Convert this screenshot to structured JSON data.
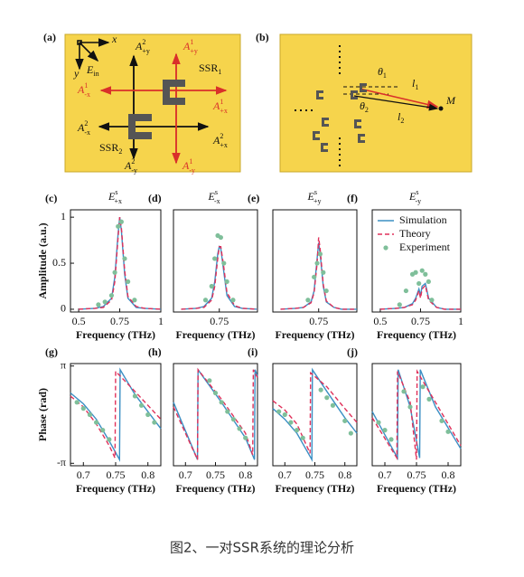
{
  "figure": {
    "a": {
      "label": "(a)",
      "texts": [
        {
          "text": "x"
        },
        {
          "text": "y"
        },
        {
          "text": "E",
          "sub": "in"
        },
        {
          "text": "A",
          "sup": "2",
          "sub": "+y"
        },
        {
          "text": "A",
          "sup": "1",
          "sub": "+y"
        },
        {
          "text": "SSR",
          "sub": "1"
        },
        {
          "text": "A",
          "sup": "1",
          "sub": "-x"
        },
        {
          "text": "A",
          "sup": "1",
          "sub": "+x"
        },
        {
          "text": "A",
          "sup": "2",
          "sub": "-x"
        },
        {
          "text": "A",
          "sup": "2",
          "sub": "+x"
        },
        {
          "text": "SSR",
          "sub": "2"
        },
        {
          "text": "A",
          "sup": "2",
          "sub": "-y"
        },
        {
          "text": "A",
          "sup": "1",
          "sub": "-y"
        }
      ]
    },
    "b": {
      "label": "(b)",
      "texts": [
        {
          "text": "θ",
          "sub": "1"
        },
        {
          "text": "l",
          "sub": "1"
        },
        {
          "text": "θ",
          "sub": "2"
        },
        {
          "text": "l",
          "sub": "2"
        },
        {
          "text": "M"
        }
      ]
    },
    "caption": "图2、一对SSR系统的理论分析"
  },
  "chart_data": [
    {
      "type": "line",
      "label": "(c)",
      "title": {
        "text": "E",
        "sup": "s",
        "sub": "+x"
      },
      "xlabel": "Frequency (THz)",
      "ylabel": "Amplitude (a.u.)",
      "xlim": [
        0.45,
        1.0
      ],
      "ylim": [
        -0.03,
        1.08
      ],
      "xticks": [
        0.5,
        0.75,
        1
      ],
      "yticks": [
        0,
        0.5,
        1
      ],
      "series": [
        {
          "color": "#3b8fc4",
          "style": "solid",
          "x": [
            0.5,
            0.6,
            0.65,
            0.7,
            0.72,
            0.74,
            0.75,
            0.76,
            0.78,
            0.8,
            0.85,
            0.9,
            1
          ],
          "values": [
            0,
            0.01,
            0.03,
            0.12,
            0.35,
            0.82,
            1,
            0.85,
            0.38,
            0.12,
            0.02,
            0.01,
            0
          ]
        },
        {
          "color": "#e0305a",
          "style": "dashed",
          "x": [
            0.5,
            0.6,
            0.65,
            0.7,
            0.72,
            0.74,
            0.75,
            0.76,
            0.78,
            0.8,
            0.85,
            0.9,
            1
          ],
          "values": [
            0,
            0.01,
            0.02,
            0.1,
            0.3,
            0.78,
            1,
            0.88,
            0.42,
            0.14,
            0.03,
            0.01,
            0
          ]
        },
        {
          "color": "#7fbf9a",
          "style": "dots",
          "x": [
            0.62,
            0.66,
            0.7,
            0.72,
            0.74,
            0.76,
            0.78,
            0.8,
            0.84
          ],
          "values": [
            0.05,
            0.08,
            0.15,
            0.4,
            0.9,
            0.95,
            0.55,
            0.3,
            0.1
          ]
        }
      ]
    },
    {
      "type": "line",
      "label": "(d)",
      "title": {
        "text": "E",
        "sup": "s",
        "sub": "-x"
      },
      "xlabel": "Frequency (THz)",
      "xlim": [
        0.45,
        1.0
      ],
      "ylim": [
        -0.03,
        1.08
      ],
      "xticks": [
        0.75
      ],
      "series": [
        {
          "color": "#3b8fc4",
          "style": "solid",
          "x": [
            0.5,
            0.6,
            0.65,
            0.7,
            0.72,
            0.74,
            0.75,
            0.76,
            0.78,
            0.8,
            0.85,
            0.9,
            1
          ],
          "values": [
            0,
            0.01,
            0.03,
            0.12,
            0.3,
            0.6,
            0.68,
            0.66,
            0.4,
            0.15,
            0.03,
            0.01,
            0
          ]
        },
        {
          "color": "#e0305a",
          "style": "dashed",
          "x": [
            0.5,
            0.6,
            0.65,
            0.7,
            0.72,
            0.74,
            0.75,
            0.76,
            0.78,
            0.8,
            0.85,
            0.9,
            1
          ],
          "values": [
            0,
            0.01,
            0.02,
            0.1,
            0.25,
            0.55,
            0.68,
            0.68,
            0.45,
            0.18,
            0.04,
            0.01,
            0
          ]
        },
        {
          "color": "#7fbf9a",
          "style": "dots",
          "x": [
            0.66,
            0.7,
            0.72,
            0.74,
            0.76,
            0.78,
            0.8,
            0.84
          ],
          "values": [
            0.1,
            0.25,
            0.55,
            0.8,
            0.78,
            0.5,
            0.3,
            0.1
          ]
        }
      ]
    },
    {
      "type": "line",
      "label": "(e)",
      "title": {
        "text": "E",
        "sup": "s",
        "sub": "+y"
      },
      "xlabel": "Frequency (THz)",
      "xlim": [
        0.45,
        1.0
      ],
      "ylim": [
        -0.03,
        1.08
      ],
      "xticks": [
        0.75
      ],
      "series": [
        {
          "color": "#3b8fc4",
          "style": "solid",
          "x": [
            0.5,
            0.6,
            0.65,
            0.7,
            0.72,
            0.74,
            0.75,
            0.76,
            0.78,
            0.8,
            0.85,
            0.9,
            1
          ],
          "values": [
            0,
            0.01,
            0.02,
            0.08,
            0.2,
            0.55,
            0.72,
            0.6,
            0.25,
            0.08,
            0.02,
            0,
            0
          ]
        },
        {
          "color": "#e0305a",
          "style": "dashed",
          "x": [
            0.5,
            0.6,
            0.65,
            0.7,
            0.72,
            0.74,
            0.75,
            0.76,
            0.78,
            0.8,
            0.85,
            0.9,
            1
          ],
          "values": [
            0,
            0.01,
            0.02,
            0.07,
            0.18,
            0.5,
            0.78,
            0.65,
            0.27,
            0.09,
            0.02,
            0,
            0
          ]
        },
        {
          "color": "#7fbf9a",
          "style": "dots",
          "x": [
            0.68,
            0.72,
            0.74,
            0.76,
            0.78,
            0.8
          ],
          "values": [
            0.1,
            0.35,
            0.5,
            0.6,
            0.4,
            0.2
          ]
        }
      ]
    },
    {
      "type": "line",
      "label": "(f)",
      "title": {
        "text": "E",
        "sup": "s",
        "sub": "-y"
      },
      "xlabel": "Frequency (THz)",
      "xlim": [
        0.45,
        1.0
      ],
      "ylim": [
        -0.03,
        1.08
      ],
      "xticks": [
        0.5,
        0.75,
        1
      ],
      "legend": "upper right",
      "series": [
        {
          "name": "Simulation",
          "color": "#3b8fc4",
          "style": "solid",
          "x": [
            0.5,
            0.6,
            0.65,
            0.7,
            0.72,
            0.74,
            0.75,
            0.76,
            0.78,
            0.8,
            0.85,
            0.9,
            1
          ],
          "values": [
            0,
            0.01,
            0.02,
            0.06,
            0.12,
            0.22,
            0.15,
            0.25,
            0.28,
            0.12,
            0.02,
            0,
            0
          ]
        },
        {
          "name": "Theory",
          "color": "#e0305a",
          "style": "dashed",
          "x": [
            0.5,
            0.6,
            0.65,
            0.7,
            0.72,
            0.74,
            0.75,
            0.76,
            0.78,
            0.8,
            0.85,
            0.9,
            1
          ],
          "values": [
            0,
            0.01,
            0.02,
            0.05,
            0.1,
            0.2,
            0.12,
            0.22,
            0.26,
            0.1,
            0.02,
            0,
            0
          ]
        },
        {
          "name": "Experiment",
          "color": "#7fbf9a",
          "style": "dots",
          "x": [
            0.62,
            0.66,
            0.7,
            0.72,
            0.74,
            0.76,
            0.78,
            0.8,
            0.82
          ],
          "values": [
            0.05,
            0.2,
            0.38,
            0.4,
            0.28,
            0.42,
            0.38,
            0.3,
            0.1
          ]
        }
      ]
    },
    {
      "type": "line",
      "label": "(g)",
      "xlabel": "Frequency (THz)",
      "ylabel": "Phase (rad)",
      "xlim": [
        0.68,
        0.82
      ],
      "ylim": [
        -3.3,
        3.3
      ],
      "xticks": [
        0.7,
        0.75,
        0.8
      ],
      "yticks": [
        {
          "value": 3.14159,
          "label": "π"
        },
        {
          "value": -3.14159,
          "label": "-π"
        }
      ],
      "series": [
        {
          "color": "#3b8fc4",
          "style": "solid",
          "x": [
            0.68,
            0.7,
            0.72,
            0.74,
            0.756,
            0.757,
            0.78,
            0.82
          ],
          "values": [
            1.4,
            0.7,
            -0.3,
            -1.7,
            -2.9,
            2.9,
            1.3,
            -0.9
          ]
        },
        {
          "color": "#e0305a",
          "style": "dashed",
          "x": [
            0.68,
            0.7,
            0.72,
            0.74,
            0.749,
            0.75,
            0.78,
            0.82
          ],
          "values": [
            1.2,
            0.5,
            -0.6,
            -2,
            -2.8,
            2.8,
            1.5,
            -0.3
          ]
        },
        {
          "color": "#7fbf9a",
          "style": "dots",
          "x": [
            0.69,
            0.7,
            0.71,
            0.72,
            0.73,
            0.74,
            0.78,
            0.79,
            0.8,
            0.81
          ],
          "values": [
            0.8,
            0.4,
            0,
            -0.5,
            -1,
            -1.6,
            1.2,
            0.6,
            0,
            -0.5
          ]
        }
      ]
    },
    {
      "type": "line",
      "label": "(h)",
      "xlabel": "Frequency (THz)",
      "xlim": [
        0.68,
        0.82
      ],
      "ylim": [
        -3.3,
        3.3
      ],
      "xticks": [
        0.7,
        0.75,
        0.8
      ],
      "series": [
        {
          "color": "#3b8fc4",
          "style": "solid",
          "x": [
            0.68,
            0.72,
            0.721,
            0.76,
            0.8,
            0.815,
            0.816,
            0.82
          ],
          "values": [
            0.8,
            -2.9,
            2.9,
            0.8,
            -1.5,
            -2.9,
            2.9,
            2.5
          ]
        },
        {
          "color": "#e0305a",
          "style": "dashed",
          "x": [
            0.68,
            0.72,
            0.721,
            0.76,
            0.8,
            0.812,
            0.813,
            0.82
          ],
          "values": [
            0.5,
            -2.9,
            2.9,
            1,
            -1.2,
            -2.6,
            2.9,
            2.4
          ]
        },
        {
          "color": "#7fbf9a",
          "style": "dots",
          "x": [
            0.74,
            0.75,
            0.76,
            0.77,
            0.78,
            0.79,
            0.8
          ],
          "values": [
            2.2,
            1.4,
            0.8,
            0.2,
            -0.3,
            -0.9,
            -1.5
          ]
        }
      ]
    },
    {
      "type": "line",
      "label": "(i)",
      "xlabel": "Frequency (THz)",
      "xlim": [
        0.68,
        0.82
      ],
      "ylim": [
        -3.3,
        3.3
      ],
      "xticks": [
        0.7,
        0.75,
        0.8
      ],
      "series": [
        {
          "color": "#3b8fc4",
          "style": "solid",
          "x": [
            0.68,
            0.7,
            0.72,
            0.745,
            0.746,
            0.77,
            0.8,
            0.82
          ],
          "values": [
            0.4,
            -0.3,
            -1.2,
            -2.9,
            2.9,
            1.5,
            -0.2,
            -1.2
          ]
        },
        {
          "color": "#e0305a",
          "style": "dashed",
          "x": [
            0.68,
            0.7,
            0.72,
            0.742,
            0.743,
            0.77,
            0.8,
            0.82
          ],
          "values": [
            0.9,
            0.3,
            -0.6,
            -2.5,
            2.7,
            1.8,
            0.4,
            -0.5
          ]
        },
        {
          "color": "#7fbf9a",
          "style": "dots",
          "x": [
            0.69,
            0.7,
            0.71,
            0.72,
            0.73,
            0.76,
            0.77,
            0.78,
            0.8,
            0.81
          ],
          "values": [
            0.2,
            0,
            -0.5,
            -1,
            -1.5,
            1.6,
            1.1,
            0.6,
            -0.4,
            -1.2
          ]
        }
      ]
    },
    {
      "type": "line",
      "label": "(j)",
      "xlabel": "Frequency (THz)",
      "xlim": [
        0.68,
        0.82
      ],
      "ylim": [
        -3.3,
        3.3
      ],
      "xticks": [
        0.7,
        0.75,
        0.8
      ],
      "series": [
        {
          "color": "#3b8fc4",
          "style": "solid",
          "x": [
            0.68,
            0.72,
            0.721,
            0.74,
            0.755,
            0.756,
            0.78,
            0.82
          ],
          "values": [
            0.2,
            -2.8,
            2.9,
            0.5,
            -2.8,
            2.9,
            0.5,
            -2.2
          ]
        },
        {
          "color": "#e0305a",
          "style": "dashed",
          "x": [
            0.68,
            0.719,
            0.72,
            0.74,
            0.75,
            0.751,
            0.78,
            0.82
          ],
          "values": [
            -0.2,
            -2.8,
            2.8,
            0.8,
            -2.9,
            2.8,
            0.8,
            -2
          ]
        },
        {
          "color": "#7fbf9a",
          "style": "dots",
          "x": [
            0.69,
            0.7,
            0.71,
            0.73,
            0.74,
            0.76,
            0.77,
            0.79,
            0.8
          ],
          "values": [
            -0.5,
            -1,
            -1.6,
            1.5,
            0.5,
            1.8,
            1,
            -0.4,
            -1.1
          ]
        }
      ]
    }
  ]
}
